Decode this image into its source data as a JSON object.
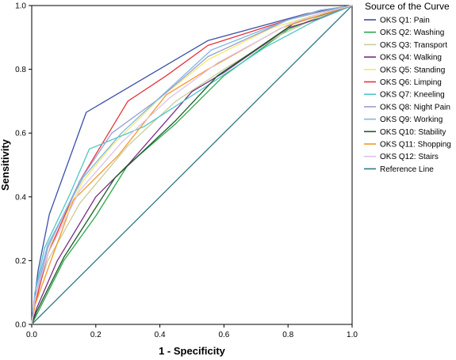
{
  "chart_data": {
    "type": "line",
    "xlabel": "1 - Specificity",
    "ylabel": "Sensitivity",
    "xlim": [
      0,
      1
    ],
    "ylim": [
      0,
      1
    ],
    "xticks": [
      "0.0",
      "0.2",
      "0.4",
      "0.6",
      "0.8",
      "1.0"
    ],
    "yticks": [
      "0.0",
      "0.2",
      "0.4",
      "0.6",
      "0.8",
      "1.0"
    ],
    "grid": false,
    "legend": {
      "title": "Source of the Curve",
      "placement": "right"
    },
    "series": [
      {
        "name": "OKS Q1: Pain",
        "color": "#3b4fa8",
        "points": [
          [
            0,
            0
          ],
          [
            0.005,
            0.05
          ],
          [
            0.02,
            0.17
          ],
          [
            0.055,
            0.345
          ],
          [
            0.17,
            0.665
          ],
          [
            0.55,
            0.89
          ],
          [
            0.86,
            0.975
          ],
          [
            1,
            1
          ]
        ]
      },
      {
        "name": "OKS Q2: Washing",
        "color": "#2aa84a",
        "points": [
          [
            0,
            0
          ],
          [
            0.02,
            0.04
          ],
          [
            0.1,
            0.2
          ],
          [
            0.2,
            0.34
          ],
          [
            0.3,
            0.5
          ],
          [
            0.45,
            0.63
          ],
          [
            0.6,
            0.78
          ],
          [
            0.8,
            0.925
          ],
          [
            0.9,
            0.965
          ],
          [
            1,
            1
          ]
        ]
      },
      {
        "name": "OKS Q3: Transport",
        "color": "#c9cc9a",
        "points": [
          [
            0,
            0
          ],
          [
            0.01,
            0.08
          ],
          [
            0.05,
            0.2
          ],
          [
            0.15,
            0.38
          ],
          [
            0.3,
            0.56
          ],
          [
            0.45,
            0.7
          ],
          [
            0.6,
            0.8
          ],
          [
            0.78,
            0.91
          ],
          [
            0.9,
            0.965
          ],
          [
            1,
            1
          ]
        ]
      },
      {
        "name": "OKS Q4: Walking",
        "color": "#7a2a84",
        "points": [
          [
            0,
            0
          ],
          [
            0.015,
            0.05
          ],
          [
            0.08,
            0.2
          ],
          [
            0.2,
            0.4
          ],
          [
            0.3,
            0.5
          ],
          [
            0.5,
            0.73
          ],
          [
            0.6,
            0.79
          ],
          [
            0.8,
            0.93
          ],
          [
            0.9,
            0.96
          ],
          [
            1,
            1
          ]
        ]
      },
      {
        "name": "OKS Q5: Standing",
        "color": "#f2ea6a",
        "points": [
          [
            0,
            0
          ],
          [
            0.01,
            0.08
          ],
          [
            0.06,
            0.25
          ],
          [
            0.16,
            0.45
          ],
          [
            0.25,
            0.56
          ],
          [
            0.4,
            0.71
          ],
          [
            0.55,
            0.83
          ],
          [
            0.75,
            0.93
          ],
          [
            0.9,
            0.975
          ],
          [
            1,
            1
          ]
        ]
      },
      {
        "name": "OKS Q6: Limping",
        "color": "#e8333a",
        "points": [
          [
            0,
            0
          ],
          [
            0.01,
            0.06
          ],
          [
            0.05,
            0.22
          ],
          [
            0.15,
            0.45
          ],
          [
            0.3,
            0.7
          ],
          [
            0.42,
            0.78
          ],
          [
            0.55,
            0.875
          ],
          [
            0.8,
            0.955
          ],
          [
            0.9,
            0.985
          ],
          [
            1,
            1
          ]
        ]
      },
      {
        "name": "OKS Q7: Kneeling",
        "color": "#4ec7c9",
        "points": [
          [
            0,
            0
          ],
          [
            0.01,
            0.1
          ],
          [
            0.04,
            0.24
          ],
          [
            0.12,
            0.41
          ],
          [
            0.18,
            0.55
          ],
          [
            0.35,
            0.62
          ],
          [
            0.55,
            0.75
          ],
          [
            0.73,
            0.87
          ],
          [
            0.88,
            0.95
          ],
          [
            1,
            1
          ]
        ]
      },
      {
        "name": "OKS Q8: Night Pain",
        "color": "#9aa0d0",
        "points": [
          [
            0,
            0
          ],
          [
            0.01,
            0.08
          ],
          [
            0.05,
            0.24
          ],
          [
            0.15,
            0.45
          ],
          [
            0.25,
            0.6
          ],
          [
            0.4,
            0.71
          ],
          [
            0.55,
            0.84
          ],
          [
            0.8,
            0.955
          ],
          [
            0.9,
            0.98
          ],
          [
            1,
            1
          ]
        ]
      },
      {
        "name": "OKS Q9: Working",
        "color": "#7fb6e6",
        "points": [
          [
            0,
            0
          ],
          [
            0.01,
            0.1
          ],
          [
            0.05,
            0.25
          ],
          [
            0.16,
            0.46
          ],
          [
            0.28,
            0.6
          ],
          [
            0.43,
            0.74
          ],
          [
            0.56,
            0.86
          ],
          [
            0.8,
            0.955
          ],
          [
            0.9,
            0.985
          ],
          [
            1,
            1
          ]
        ]
      },
      {
        "name": "OKS Q10: Stability",
        "color": "#1e5a28",
        "points": [
          [
            0,
            0
          ],
          [
            0.015,
            0.04
          ],
          [
            0.1,
            0.21
          ],
          [
            0.26,
            0.46
          ],
          [
            0.45,
            0.64
          ],
          [
            0.58,
            0.78
          ],
          [
            0.82,
            0.945
          ],
          [
            0.92,
            0.975
          ],
          [
            1,
            1
          ]
        ]
      },
      {
        "name": "OKS Q11: Shopping",
        "color": "#f29a27",
        "points": [
          [
            0,
            0
          ],
          [
            0.01,
            0.06
          ],
          [
            0.06,
            0.2
          ],
          [
            0.13,
            0.39
          ],
          [
            0.27,
            0.53
          ],
          [
            0.42,
            0.72
          ],
          [
            0.55,
            0.8
          ],
          [
            0.78,
            0.93
          ],
          [
            0.9,
            0.97
          ],
          [
            1,
            1
          ]
        ]
      },
      {
        "name": "OKS Q12: Stairs",
        "color": "#dcc2ea",
        "points": [
          [
            0,
            0
          ],
          [
            0.01,
            0.08
          ],
          [
            0.05,
            0.22
          ],
          [
            0.15,
            0.42
          ],
          [
            0.28,
            0.57
          ],
          [
            0.43,
            0.71
          ],
          [
            0.58,
            0.82
          ],
          [
            0.8,
            0.94
          ],
          [
            0.9,
            0.975
          ],
          [
            1,
            1
          ]
        ]
      },
      {
        "name": "Reference Line",
        "color": "#2e7a85",
        "points": [
          [
            0,
            0
          ],
          [
            1,
            1
          ]
        ]
      }
    ]
  }
}
